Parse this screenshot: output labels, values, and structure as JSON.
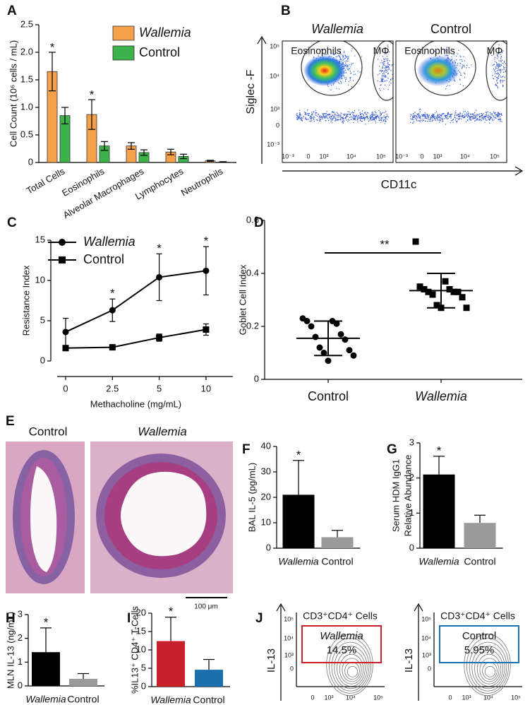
{
  "chart_data": [
    {
      "panel": "A",
      "type": "bar",
      "ylabel": "Cell Count (10⁶ cells / mL)",
      "categories": [
        "Total Cells",
        "Eosinophils",
        "Alveolar Macrophages",
        "Lymphocytes",
        "Neutrophils"
      ],
      "series": [
        {
          "name": "Wallemia",
          "color": "#f5a04a",
          "values": [
            1.65,
            0.87,
            0.3,
            0.19,
            0.03
          ],
          "errors": [
            0.35,
            0.27,
            0.06,
            0.05,
            0.01
          ],
          "significance": [
            "*",
            "*",
            null,
            null,
            null
          ]
        },
        {
          "name": "Control",
          "color": "#3cb34a",
          "values": [
            0.85,
            0.3,
            0.18,
            0.11,
            0.01
          ],
          "errors": [
            0.15,
            0.08,
            0.05,
            0.04,
            0.005
          ]
        }
      ],
      "ylim": [
        0,
        2.5
      ],
      "yticks": [
        0,
        0.5,
        {
          "value": 1,
          "label": "1.0"
        },
        1.5,
        {
          "value": 2,
          "label": "2.0"
        },
        2.5
      ]
    },
    {
      "panel": "C",
      "type": "line",
      "ylabel": "Resistance Index",
      "xlabel": "Methacholine (mg/mL)",
      "categories": [
        "0",
        "2.5",
        "5",
        "10"
      ],
      "series": [
        {
          "name": "Wallemia",
          "color": "#000000",
          "values": [
            3.6,
            6.3,
            10.4,
            11.2
          ],
          "errors": [
            1.7,
            1.4,
            2.9,
            3.0
          ],
          "significance": [
            null,
            "*",
            "*",
            "*"
          ]
        },
        {
          "name": "Control",
          "color": "#000000",
          "values": [
            1.6,
            1.7,
            2.9,
            3.9
          ],
          "errors": [
            0.15,
            0.15,
            0.45,
            0.7
          ]
        }
      ],
      "ylim": [
        0,
        15
      ],
      "yticks": [
        0,
        5,
        10,
        15
      ]
    },
    {
      "panel": "D",
      "type": "strip",
      "ylabel": "Goblet Cell Index",
      "categories": [
        "Control",
        "Wallemia"
      ],
      "points": [
        [
          0.23,
          0.22,
          0.22,
          0.21,
          0.2,
          0.17,
          0.16,
          0.15,
          0.12,
          0.11,
          0.1,
          0.09,
          0.07
        ],
        [
          0.52,
          0.37,
          0.35,
          0.34,
          0.34,
          0.33,
          0.33,
          0.33,
          0.32,
          0.31,
          0.28,
          0.27,
          0.27
        ]
      ],
      "means": [
        0.155,
        0.335
      ],
      "sds": [
        0.065,
        0.065
      ],
      "annotation": "**",
      "ylim": [
        0,
        0.6
      ],
      "yticks": [
        0,
        0.2,
        0.4,
        0.6
      ]
    },
    {
      "panel": "F",
      "type": "bar",
      "ylabel": "BAL IL-5 (pg/mL)",
      "categories": [
        "Wallemia",
        "Control"
      ],
      "values": [
        21,
        4.3
      ],
      "errors": [
        13.5,
        2.7
      ],
      "colors": [
        "#000000",
        "#9a9a9a"
      ],
      "significance": [
        "*",
        null
      ],
      "ylim": [
        0,
        40
      ],
      "yticks": [
        0,
        10,
        20,
        30,
        40
      ]
    },
    {
      "panel": "G",
      "type": "bar",
      "ylabel": [
        "Serum HDM IgG1",
        "Relative Abundance"
      ],
      "categories": [
        "Wallemia",
        "Control"
      ],
      "values": [
        2.1,
        0.72
      ],
      "errors": [
        0.52,
        0.22
      ],
      "colors": [
        "#000000",
        "#9a9a9a"
      ],
      "significance": [
        "*",
        null
      ],
      "ylim": [
        0,
        3
      ],
      "yticks": [
        0,
        1,
        2,
        3
      ]
    },
    {
      "panel": "H",
      "type": "bar",
      "ylabel": "MLN IL-13 (ng/mL)",
      "categories": [
        "Wallemia",
        "Control"
      ],
      "values": [
        1.42,
        0.3
      ],
      "errors": [
        1.02,
        0.22
      ],
      "colors": [
        "#000000",
        "#9a9a9a"
      ],
      "significance": [
        "*",
        null
      ],
      "ylim": [
        0,
        3
      ],
      "yticks": [
        0,
        1,
        2,
        3
      ]
    },
    {
      "panel": "I",
      "type": "bar",
      "ylabel": "%IL13⁺ CD4⁺ T-Cells",
      "categories": [
        "Wallemia",
        "Control"
      ],
      "values": [
        12.4,
        4.6
      ],
      "errors": [
        6.5,
        2.8
      ],
      "colors": [
        "#c8202a",
        "#1a6fae"
      ],
      "significance": [
        "*",
        null
      ],
      "ylim": [
        0,
        20
      ],
      "yticks": [
        0,
        5,
        10,
        15,
        20
      ]
    }
  ],
  "flow_b": {
    "panel": "B",
    "ylabel": "Siglec -F",
    "xlabel": "CD11c",
    "plots": [
      {
        "title": "Wallemia",
        "gates": [
          "Eosinophils",
          "MΦ"
        ]
      },
      {
        "title": "Control",
        "gates": [
          "Eosinophils",
          "MΦ"
        ]
      }
    ],
    "yticks": [
      "10⁵",
      "10⁴",
      "10³",
      "0",
      "10⁻³"
    ],
    "xticks": [
      "10⁻³",
      "0",
      "10³",
      "10⁴",
      "10⁵"
    ]
  },
  "histology_e": {
    "panel": "E",
    "labels": [
      "Control",
      "Wallemia"
    ],
    "scale_bar": "100 μm"
  },
  "flow_j": {
    "panel": "J",
    "ylabel": "IL-13",
    "plots": [
      {
        "title": "CD3⁺CD4⁺ Cells",
        "gate_label": "Wallemia",
        "percent": "14.5%",
        "gate_color": "#c8202a"
      },
      {
        "title": "CD3⁺CD4⁺ Cells",
        "gate_label": "Control",
        "percent": "5.95%",
        "gate_color": "#1a6fae"
      }
    ],
    "yticks": [
      "10⁵",
      "10⁴",
      "10³",
      "0"
    ],
    "xticks": [
      "0",
      "10³",
      "10⁴",
      "10⁵"
    ]
  }
}
